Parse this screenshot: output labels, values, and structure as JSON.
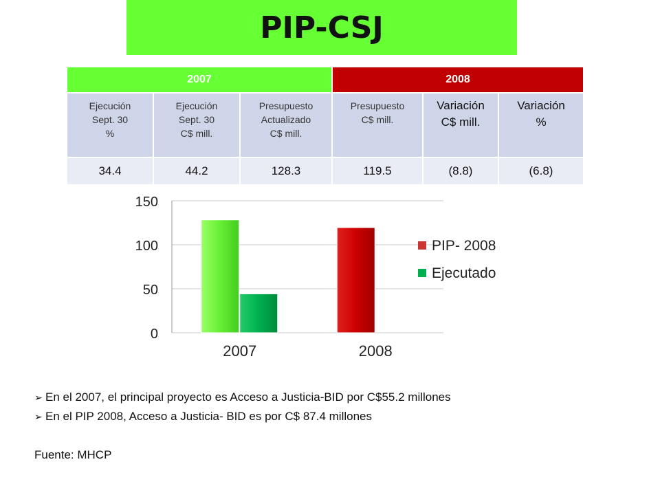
{
  "title": "PIP-CSJ",
  "table": {
    "group_headers": [
      {
        "label": "2007",
        "color": "#66ff33"
      },
      {
        "label": "2008",
        "color": "#c00000"
      }
    ],
    "columns": [
      [
        "Ejecución",
        "Sept. 30",
        "%"
      ],
      [
        "Ejecución",
        "Sept. 30",
        "C$ mill."
      ],
      [
        "Presupuesto",
        "Actualizado",
        "C$ mill."
      ],
      [
        "Presupuesto",
        "C$ mill."
      ],
      [
        "Variación",
        "C$ mill."
      ],
      [
        "Variación",
        "%"
      ]
    ],
    "values": [
      "34.4",
      "44.2",
      "128.3",
      "119.5",
      "(8.8)",
      "(6.8)"
    ]
  },
  "chart_data": {
    "type": "bar",
    "categories": [
      "2007",
      "2008"
    ],
    "series": [
      {
        "name": "PIP- 2008",
        "values": [
          128.3,
          119.5
        ],
        "colors": [
          "#66ee33",
          "#cc0000"
        ]
      },
      {
        "name": "Ejecutado",
        "values": [
          44.2,
          null
        ],
        "colors": [
          "#00b050",
          "#00b050"
        ]
      }
    ],
    "ylim": [
      0,
      150
    ],
    "yticks": [
      "0",
      "50",
      "100",
      "150"
    ],
    "grid": true,
    "legend_position": "right"
  },
  "notes": [
    "En el 2007, el principal proyecto es Acceso a Justicia-BID por C$55.2 millones",
    "En el PIP 2008, Acceso a Justicia- BID es por C$ 87.4 millones"
  ],
  "bullet_icon": "arrow-bullet-icon",
  "source": "Fuente: MHCP"
}
